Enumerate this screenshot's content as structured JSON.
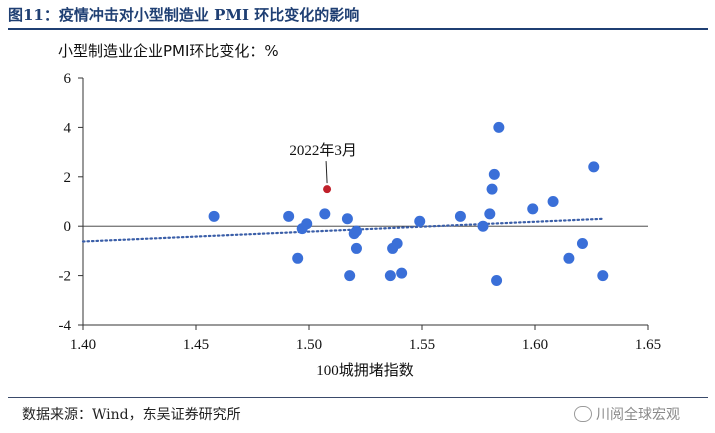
{
  "figure": {
    "title": "图11：疫情冲击对小型制造业 PMI 环比变化的影响",
    "source": "数据来源：Wind，东吴证券研究所",
    "watermark": "川阅全球宏观"
  },
  "chart_data": {
    "type": "scatter",
    "title": "",
    "ylabel": "小型制造业企业PMI环比变化：%",
    "xlabel": "100城拥堵指数",
    "xlim": [
      1.4,
      1.65
    ],
    "ylim": [
      -4,
      6
    ],
    "xticks": [
      "1.40",
      "1.45",
      "1.50",
      "1.55",
      "1.60",
      "1.65"
    ],
    "yticks": [
      "6",
      "4",
      "2",
      "0",
      "-2",
      "-4"
    ],
    "xtick_values": [
      1.4,
      1.45,
      1.5,
      1.55,
      1.6,
      1.65
    ],
    "ytick_values": [
      6,
      4,
      2,
      0,
      -2,
      -4
    ],
    "grid": false,
    "point_color": "#3a6fd8",
    "highlight_color": "#c0202a",
    "trendline": {
      "x": [
        1.4,
        1.63
      ],
      "y": [
        -0.62,
        0.3
      ],
      "color": "#3a5ea8",
      "style": "dotted"
    },
    "points": [
      {
        "x": 1.458,
        "y": 0.4
      },
      {
        "x": 1.491,
        "y": 0.4
      },
      {
        "x": 1.495,
        "y": -1.3
      },
      {
        "x": 1.497,
        "y": -0.1
      },
      {
        "x": 1.499,
        "y": 0.1
      },
      {
        "x": 1.507,
        "y": 0.5
      },
      {
        "x": 1.517,
        "y": 0.3
      },
      {
        "x": 1.518,
        "y": -2.0
      },
      {
        "x": 1.52,
        "y": -0.3
      },
      {
        "x": 1.521,
        "y": -0.2
      },
      {
        "x": 1.521,
        "y": -0.9
      },
      {
        "x": 1.536,
        "y": -2.0
      },
      {
        "x": 1.537,
        "y": -0.9
      },
      {
        "x": 1.539,
        "y": -0.7
      },
      {
        "x": 1.541,
        "y": -1.9
      },
      {
        "x": 1.549,
        "y": 0.2
      },
      {
        "x": 1.567,
        "y": 0.4
      },
      {
        "x": 1.577,
        "y": 0.0
      },
      {
        "x": 1.58,
        "y": 0.5
      },
      {
        "x": 1.581,
        "y": 1.5
      },
      {
        "x": 1.582,
        "y": 2.1
      },
      {
        "x": 1.583,
        "y": -2.2
      },
      {
        "x": 1.584,
        "y": 4.0
      },
      {
        "x": 1.599,
        "y": 0.7
      },
      {
        "x": 1.608,
        "y": 1.0
      },
      {
        "x": 1.615,
        "y": -1.3
      },
      {
        "x": 1.621,
        "y": -0.7
      },
      {
        "x": 1.626,
        "y": 2.4
      },
      {
        "x": 1.63,
        "y": -2.0
      }
    ],
    "highlight": {
      "x": 1.508,
      "y": 1.5,
      "label": "2022年3月"
    }
  }
}
